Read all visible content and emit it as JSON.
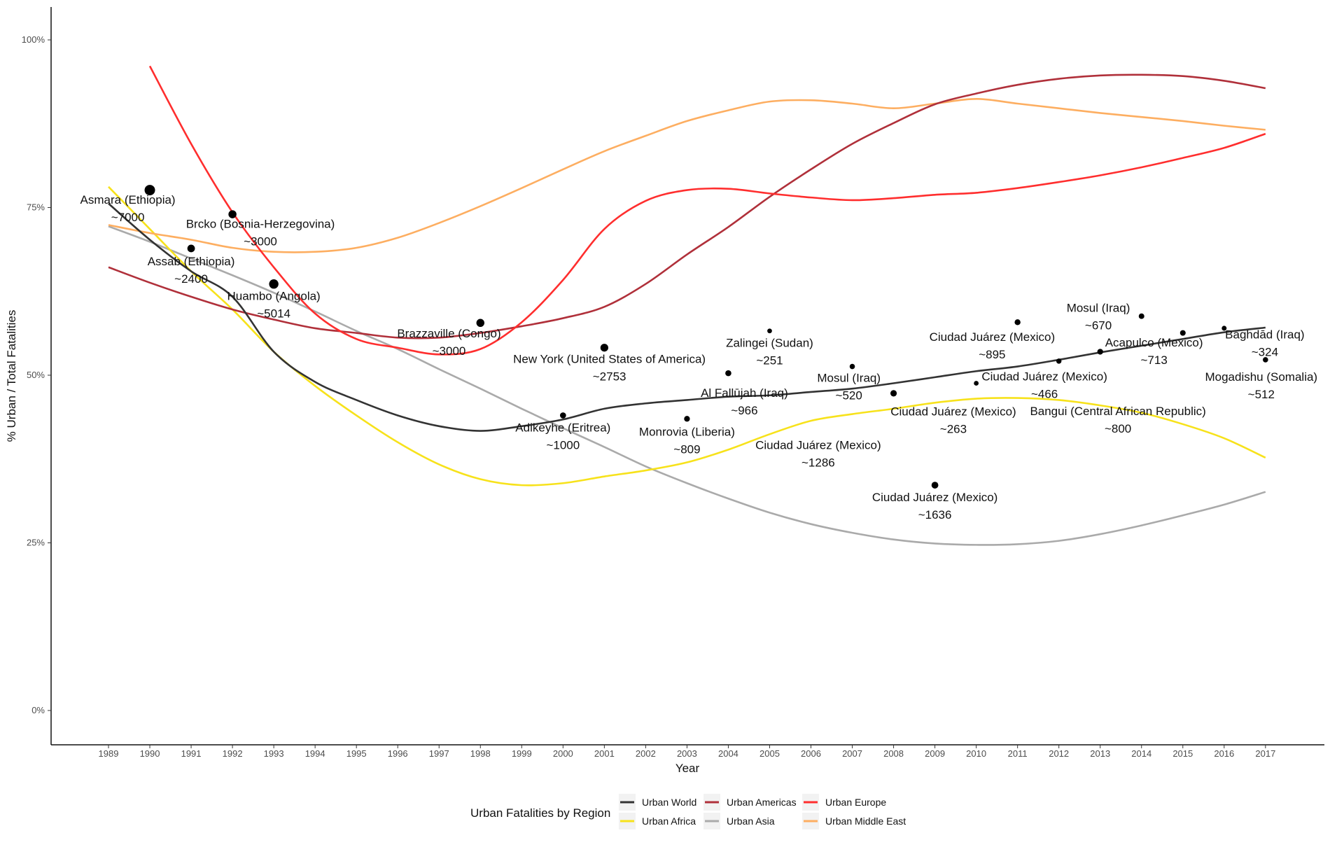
{
  "chart_data": {
    "type": "line",
    "title": "",
    "xlabel": "Year",
    "ylabel": "% Urban / Total Fatalities",
    "xlim": [
      1989,
      2017
    ],
    "ylim": [
      0,
      100
    ],
    "x_ticks": [
      "1989",
      "1990",
      "1991",
      "1992",
      "1993",
      "1994",
      "1995",
      "1996",
      "1997",
      "1998",
      "1999",
      "2000",
      "2001",
      "2002",
      "2003",
      "2004",
      "2005",
      "2006",
      "2007",
      "2008",
      "2009",
      "2010",
      "2011",
      "2012",
      "2013",
      "2014",
      "2015",
      "2016",
      "2017"
    ],
    "y_ticks": [
      0,
      25,
      50,
      75,
      100
    ],
    "y_tick_labels": [
      "0%",
      "25%",
      "50%",
      "75%",
      "100%"
    ],
    "grid": false,
    "legend": {
      "title": "Urban Fatalities by Region",
      "placement": "bottom"
    },
    "series": [
      {
        "name": "Urban World",
        "color": "#333333",
        "x_start": 1989,
        "values": [
          75.6,
          70.2,
          65.5,
          61.7,
          53.5,
          49,
          46.3,
          44,
          42.4,
          41.7,
          42.4,
          43.4,
          45,
          45.8,
          46.3,
          46.8,
          47,
          47.5,
          48,
          48.8,
          49.7,
          50.6,
          51.3,
          52.3,
          53.4,
          54.4,
          55.4,
          56.4,
          57.1
        ]
      },
      {
        "name": "Urban Africa",
        "color": "#F7E21B",
        "x_start": 1989,
        "values": [
          78.1,
          71.8,
          65.5,
          59.8,
          53.5,
          48.4,
          44,
          40,
          36.7,
          34.5,
          33.6,
          33.9,
          34.9,
          35.8,
          37,
          38.9,
          41.2,
          43.2,
          44.2,
          45,
          45.9,
          46.5,
          46.6,
          46.3,
          45.5,
          44.4,
          42.7,
          40.6,
          37.7
        ]
      },
      {
        "name": "Urban Americas",
        "color": "#B0303A",
        "x_start": 1989,
        "values": [
          66.1,
          63.8,
          61.7,
          59.8,
          58.3,
          57,
          56.3,
          55.6,
          55.6,
          56.3,
          57.3,
          58.5,
          60.2,
          63.6,
          68,
          72.1,
          76.6,
          80.7,
          84.5,
          87.6,
          90.4,
          92,
          93.3,
          94.2,
          94.7,
          94.8,
          94.6,
          93.9,
          92.8
        ]
      },
      {
        "name": "Urban Asia",
        "color": "#AAAAAA",
        "x_start": 1989,
        "values": [
          72.2,
          69.9,
          67.4,
          64.9,
          62.3,
          59.5,
          56.6,
          53.9,
          50.9,
          48,
          45,
          42.1,
          39.3,
          36.4,
          33.9,
          31.6,
          29.5,
          27.8,
          26.5,
          25.5,
          24.9,
          24.7,
          24.8,
          25.3,
          26.3,
          27.6,
          29.1,
          30.7,
          32.6
        ]
      },
      {
        "name": "Urban Europe",
        "color": "#FF2E2E",
        "x_start": 1990,
        "values": [
          96.1,
          84.5,
          74.3,
          66.1,
          59.2,
          55.4,
          54.1,
          53.1,
          53.9,
          57.9,
          64.2,
          71.8,
          76,
          77.6,
          77.8,
          77.1,
          76.5,
          76.1,
          76.4,
          76.9,
          77.2,
          77.9,
          78.8,
          79.8,
          81,
          82.4,
          83.9,
          86
        ]
      },
      {
        "name": "Urban Middle East",
        "color": "#FDAE61",
        "x_start": 1989,
        "values": [
          72.4,
          71.2,
          70.2,
          69,
          68.4,
          68.4,
          69,
          70.5,
          72.7,
          75.2,
          77.9,
          80.7,
          83.4,
          85.7,
          87.9,
          89.5,
          90.8,
          91,
          90.5,
          89.8,
          90.5,
          91.2,
          90.5,
          89.8,
          89.1,
          88.5,
          87.9,
          87.2,
          86.6
        ]
      }
    ],
    "points": [
      {
        "year": 1990,
        "pct": 77.6,
        "city": "Asmara (Ethiopia)",
        "fatalities": "~7000"
      },
      {
        "year": 1991,
        "pct": 68.9,
        "city": "Assab (Ethiopia)",
        "fatalities": "~2400"
      },
      {
        "year": 1992,
        "pct": 74.0,
        "city": "Brcko (Bosnia-Herzegovina)",
        "fatalities": "~3000"
      },
      {
        "year": 1993,
        "pct": 63.6,
        "city": "Huambo (Angola)",
        "fatalities": "~5014"
      },
      {
        "year": 1998,
        "pct": 57.8,
        "city": "Brazzaville (Congo)",
        "fatalities": "~3000"
      },
      {
        "year": 2000,
        "pct": 44.0,
        "city": "Adikeyhe (Eritrea)",
        "fatalities": "~1000"
      },
      {
        "year": 2001,
        "pct": 54.1,
        "city": "New York (United States of America)",
        "fatalities": "~2753"
      },
      {
        "year": 2003,
        "pct": 43.5,
        "city": "Monrovia (Liberia)",
        "fatalities": "~809"
      },
      {
        "year": 2004,
        "pct": 50.3,
        "city": "Al Fallūjah (Iraq)",
        "fatalities": "~966"
      },
      {
        "year": 2005,
        "pct": 56.6,
        "city": "Zalingei (Sudan)",
        "fatalities": "~251"
      },
      {
        "year": 2007,
        "pct": 51.3,
        "city": "Mosul (Iraq)",
        "fatalities": "~520"
      },
      {
        "year": 2008,
        "pct": 47.3,
        "city": "Ciudad Juárez (Mexico)",
        "fatalities": "~1286"
      },
      {
        "year": 2009,
        "pct": 33.6,
        "city": "Ciudad Juárez (Mexico)",
        "fatalities": "~1636"
      },
      {
        "year": 2010,
        "pct": 48.8,
        "city": "Ciudad Juárez (Mexico)",
        "fatalities": "~263"
      },
      {
        "year": 2011,
        "pct": 57.9,
        "city": "Ciudad Juárez (Mexico)",
        "fatalities": "~895"
      },
      {
        "year": 2012,
        "pct": 52.1,
        "city": "Ciudad Juárez (Mexico)",
        "fatalities": "~466"
      },
      {
        "year": 2013,
        "pct": 53.5,
        "city": "Bangui (Central African Republic)",
        "fatalities": "~800"
      },
      {
        "year": 2014,
        "pct": 58.8,
        "city": "Mosul (Iraq)",
        "fatalities": "~670"
      },
      {
        "year": 2015,
        "pct": 56.3,
        "city": "Acapulco (Mexico)",
        "fatalities": "~713"
      },
      {
        "year": 2016,
        "pct": 57.0,
        "city": "Baghdād (Iraq)",
        "fatalities": "~324"
      },
      {
        "year": 2017,
        "pct": 52.3,
        "city": "Mogadishu (Somalia)",
        "fatalities": "~512"
      }
    ]
  }
}
